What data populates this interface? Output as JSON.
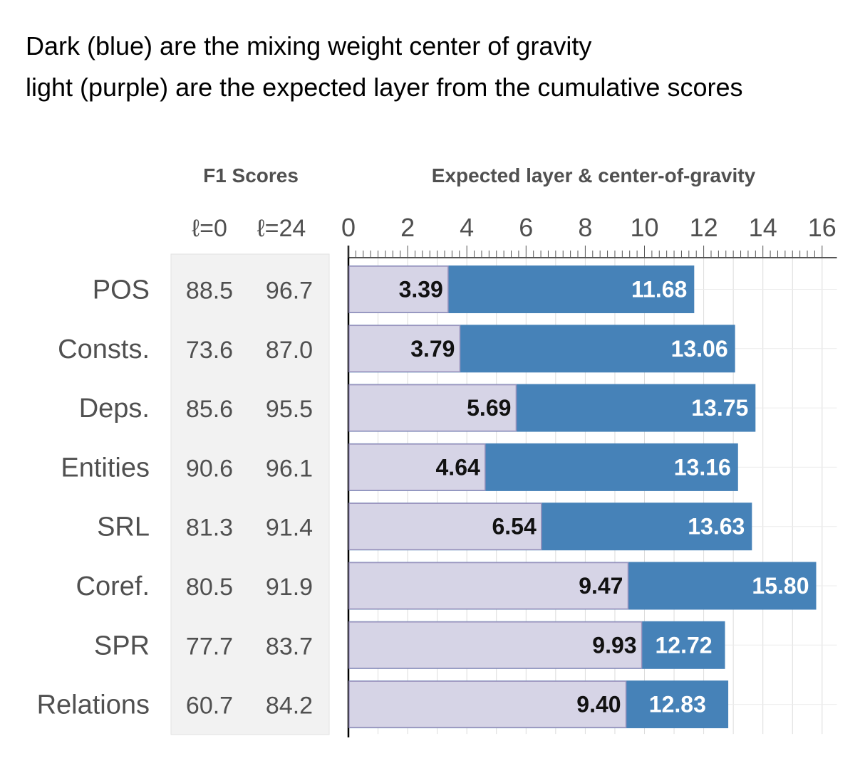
{
  "caption": {
    "line1": "Dark (blue) are the mixing weight center of gravity",
    "line2": "light (purple) are the expected layer from the cumulative scores"
  },
  "colors": {
    "dark_bar": "#4682b8",
    "light_bar": "#d6d4e6",
    "light_bar_stroke": "#9b93bd",
    "score_panel": "#f2f2f2",
    "grid": "#dcdcdc",
    "text": "#505050"
  },
  "chart_data": {
    "type": "bar",
    "orientation": "horizontal",
    "table_header": "F1 Scores",
    "table_columns": [
      "ℓ=0",
      "ℓ=24"
    ],
    "title": "Expected layer & center-of-gravity",
    "xlim": [
      0,
      16
    ],
    "xticks": [
      "0",
      "2",
      "4",
      "6",
      "8",
      "10",
      "12",
      "14",
      "16"
    ],
    "grid": true,
    "categories": [
      "POS",
      "Consts.",
      "Deps.",
      "Entities",
      "SRL",
      "Coref.",
      "SPR",
      "Relations"
    ],
    "f1_l0": [
      "88.5",
      "73.6",
      "85.6",
      "90.6",
      "81.3",
      "80.5",
      "77.7",
      "60.7"
    ],
    "f1_l24": [
      "96.7",
      "87.0",
      "95.5",
      "96.1",
      "91.4",
      "91.9",
      "83.7",
      "84.2"
    ],
    "series": [
      {
        "values": [
          3.39,
          3.79,
          5.69,
          4.64,
          6.54,
          9.47,
          9.93,
          9.4
        ],
        "labels": [
          "3.39",
          "3.79",
          "5.69",
          "4.64",
          "6.54",
          "9.47",
          "9.93",
          "9.40"
        ]
      },
      {
        "values": [
          11.68,
          13.06,
          13.75,
          13.16,
          13.63,
          15.8,
          12.72,
          12.83
        ],
        "labels": [
          "11.68",
          "13.06",
          "13.75",
          "13.16",
          "13.63",
          "15.80",
          "12.72",
          "12.83"
        ]
      }
    ]
  }
}
